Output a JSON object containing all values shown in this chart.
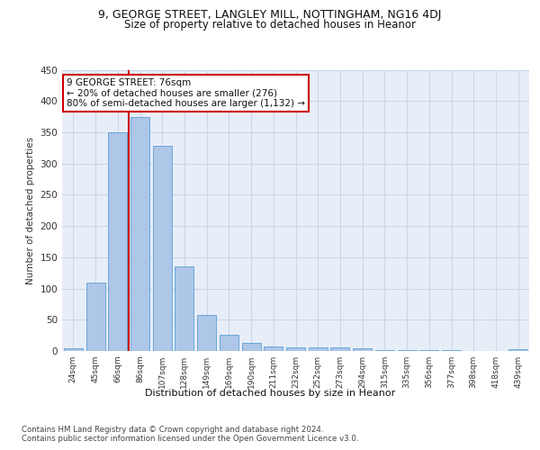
{
  "title_line1": "9, GEORGE STREET, LANGLEY MILL, NOTTINGHAM, NG16 4DJ",
  "title_line2": "Size of property relative to detached houses in Heanor",
  "xlabel": "Distribution of detached houses by size in Heanor",
  "ylabel": "Number of detached properties",
  "categories": [
    "24sqm",
    "45sqm",
    "66sqm",
    "86sqm",
    "107sqm",
    "128sqm",
    "149sqm",
    "169sqm",
    "190sqm",
    "211sqm",
    "232sqm",
    "252sqm",
    "273sqm",
    "294sqm",
    "315sqm",
    "335sqm",
    "356sqm",
    "377sqm",
    "398sqm",
    "418sqm",
    "439sqm"
  ],
  "values": [
    5,
    110,
    350,
    375,
    328,
    136,
    57,
    26,
    13,
    7,
    6,
    6,
    6,
    4,
    2,
    1,
    1,
    1,
    0,
    0,
    3
  ],
  "bar_color": "#aec6e8",
  "bar_edge_color": "#5a9fd4",
  "vline_color": "#cc0000",
  "vline_pos": 2.5,
  "annotation_text": "9 GEORGE STREET: 76sqm\n← 20% of detached houses are smaller (276)\n80% of semi-detached houses are larger (1,132) →",
  "annotation_box_color": "#ffffff",
  "annotation_box_edge": "#cc0000",
  "ylim": [
    0,
    450
  ],
  "yticks": [
    0,
    50,
    100,
    150,
    200,
    250,
    300,
    350,
    400,
    450
  ],
  "grid_color": "#ccd6e8",
  "background_color": "#e8eef8",
  "footer_line1": "Contains HM Land Registry data © Crown copyright and database right 2024.",
  "footer_line2": "Contains public sector information licensed under the Open Government Licence v3.0."
}
